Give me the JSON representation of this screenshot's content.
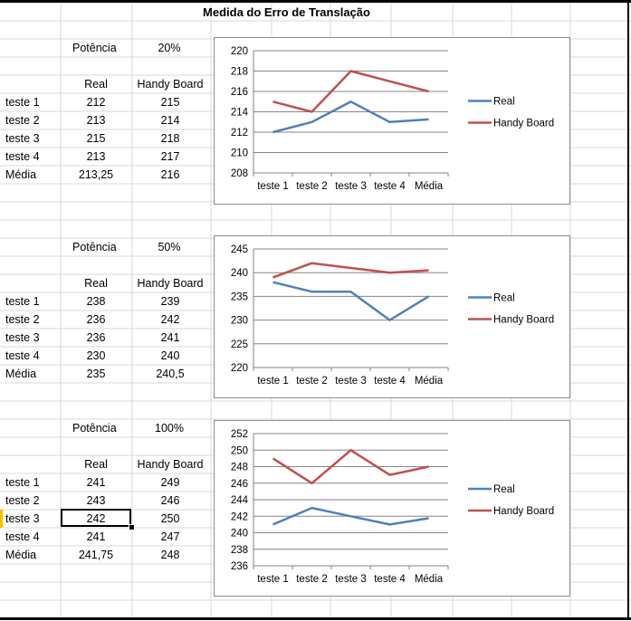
{
  "sheet": {
    "title": "Medida do Erro de Translação",
    "row_labels": [
      "teste 1",
      "teste 2",
      "teste 3",
      "teste 4",
      "Média"
    ],
    "col_headers": {
      "real": "Real",
      "handy": "Handy Board"
    },
    "potencia_label": "Potência",
    "blocks": [
      {
        "potencia": "20%",
        "real": [
          "212",
          "213",
          "215",
          "213",
          "213,25"
        ],
        "handy": [
          "215",
          "214",
          "218",
          "217",
          "216"
        ]
      },
      {
        "potencia": "50%",
        "real": [
          "238",
          "236",
          "236",
          "230",
          "235"
        ],
        "handy": [
          "239",
          "242",
          "241",
          "240",
          "240,5"
        ]
      },
      {
        "potencia": "100%",
        "real": [
          "241",
          "243",
          "242",
          "241",
          "241,75"
        ],
        "handy": [
          "249",
          "246",
          "250",
          "247",
          "248"
        ]
      }
    ],
    "selected_cell": "242"
  },
  "chart_data": [
    {
      "type": "line",
      "categories": [
        "teste 1",
        "teste 2",
        "teste 3",
        "teste 4",
        "Média"
      ],
      "ylim": [
        208,
        220
      ],
      "yticks": [
        "208",
        "210",
        "212",
        "214",
        "216",
        "218",
        "220"
      ],
      "series": [
        {
          "name": "Real",
          "color": "#4f81bd",
          "values": [
            212,
            213,
            215,
            213,
            213.25
          ]
        },
        {
          "name": "Handy Board",
          "color": "#c0504d",
          "values": [
            215,
            214,
            218,
            217,
            216
          ]
        }
      ],
      "grid": true,
      "legend": "right"
    },
    {
      "type": "line",
      "categories": [
        "teste 1",
        "teste 2",
        "teste 3",
        "teste 4",
        "Média"
      ],
      "ylim": [
        220,
        245
      ],
      "yticks": [
        "220",
        "225",
        "230",
        "235",
        "240",
        "245"
      ],
      "series": [
        {
          "name": "Real",
          "color": "#4f81bd",
          "values": [
            238,
            236,
            236,
            230,
            235
          ]
        },
        {
          "name": "Handy Board",
          "color": "#c0504d",
          "values": [
            239,
            242,
            241,
            240,
            240.5
          ]
        }
      ],
      "grid": true,
      "legend": "right"
    },
    {
      "type": "line",
      "categories": [
        "teste 1",
        "teste 2",
        "teste 3",
        "teste 4",
        "Média"
      ],
      "ylim": [
        236,
        252
      ],
      "yticks": [
        "236",
        "238",
        "240",
        "242",
        "244",
        "246",
        "248",
        "250",
        "252"
      ],
      "series": [
        {
          "name": "Real",
          "color": "#4f81bd",
          "values": [
            241,
            243,
            242,
            241,
            241.75
          ]
        },
        {
          "name": "Handy Board",
          "color": "#c0504d",
          "values": [
            249,
            246,
            250,
            247,
            248
          ]
        }
      ],
      "grid": true,
      "legend": "right"
    }
  ]
}
